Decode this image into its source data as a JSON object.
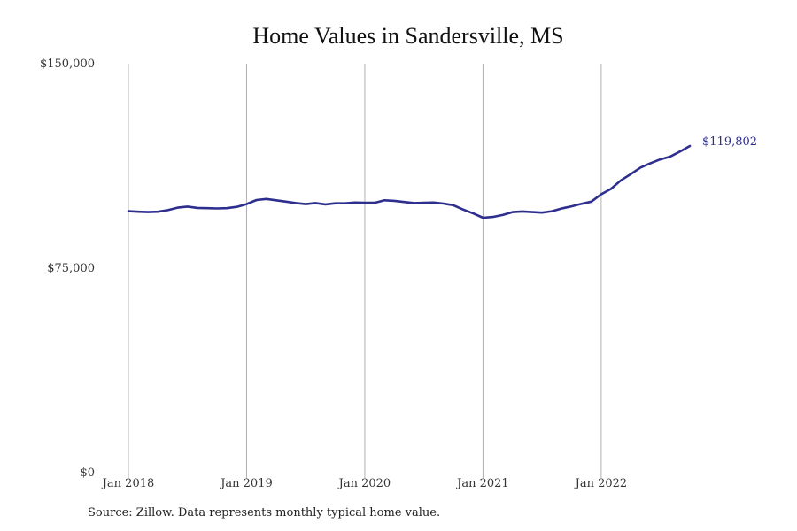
{
  "chart_data": {
    "type": "line",
    "title": "Home Values in Sandersville, MS",
    "xlabel": "",
    "ylabel": "",
    "ylim": [
      0,
      150000
    ],
    "y_ticks": [
      {
        "value": 0,
        "label": "$0"
      },
      {
        "value": 75000,
        "label": "$75,000"
      },
      {
        "value": 150000,
        "label": "$150,000"
      }
    ],
    "x_ticks": [
      {
        "value": "2018-01",
        "label": "Jan 2018"
      },
      {
        "value": "2019-01",
        "label": "Jan 2019"
      },
      {
        "value": "2020-01",
        "label": "Jan 2020"
      },
      {
        "value": "2021-01",
        "label": "Jan 2021"
      },
      {
        "value": "2022-01",
        "label": "Jan 2022"
      }
    ],
    "xlim": [
      "2018-01",
      "2022-10"
    ],
    "grid": {
      "vertical": true,
      "horizontal": false
    },
    "line_color": "#2e2e8f",
    "series": [
      {
        "x": [
          "2018-01",
          "2018-02",
          "2018-03",
          "2018-04",
          "2018-05",
          "2018-06",
          "2018-07",
          "2018-08",
          "2018-09",
          "2018-10",
          "2018-11",
          "2018-12",
          "2019-01",
          "2019-02",
          "2019-03",
          "2019-04",
          "2019-05",
          "2019-06",
          "2019-07",
          "2019-08",
          "2019-09",
          "2019-10",
          "2019-11",
          "2019-12",
          "2020-01",
          "2020-02",
          "2020-03",
          "2020-04",
          "2020-05",
          "2020-06",
          "2020-07",
          "2020-08",
          "2020-09",
          "2020-10",
          "2020-11",
          "2020-12",
          "2021-01",
          "2021-02",
          "2021-03",
          "2021-04",
          "2021-05",
          "2021-06",
          "2021-07",
          "2021-08",
          "2021-09",
          "2021-10",
          "2021-11",
          "2021-12",
          "2022-01",
          "2022-02",
          "2022-03",
          "2022-04",
          "2022-05",
          "2022-06",
          "2022-07",
          "2022-08",
          "2022-09",
          "2022-10"
        ],
        "values": [
          95900,
          95700,
          95600,
          95700,
          96300,
          97200,
          97600,
          97100,
          97000,
          96900,
          97000,
          97500,
          98500,
          100000,
          100400,
          99900,
          99400,
          98900,
          98500,
          98900,
          98400,
          98800,
          98800,
          99100,
          99000,
          99000,
          99900,
          99700,
          99300,
          98900,
          99000,
          99100,
          98700,
          98100,
          96500,
          95100,
          93500,
          93800,
          94500,
          95600,
          95800,
          95600,
          95400,
          95900,
          96900,
          97700,
          98600,
          99400,
          102100,
          104100,
          107200,
          109500,
          111900,
          113500,
          114900,
          115900,
          117800,
          119802
        ]
      }
    ],
    "end_label": "$119,802"
  },
  "source_note": "Source: Zillow. Data represents monthly typical home value."
}
